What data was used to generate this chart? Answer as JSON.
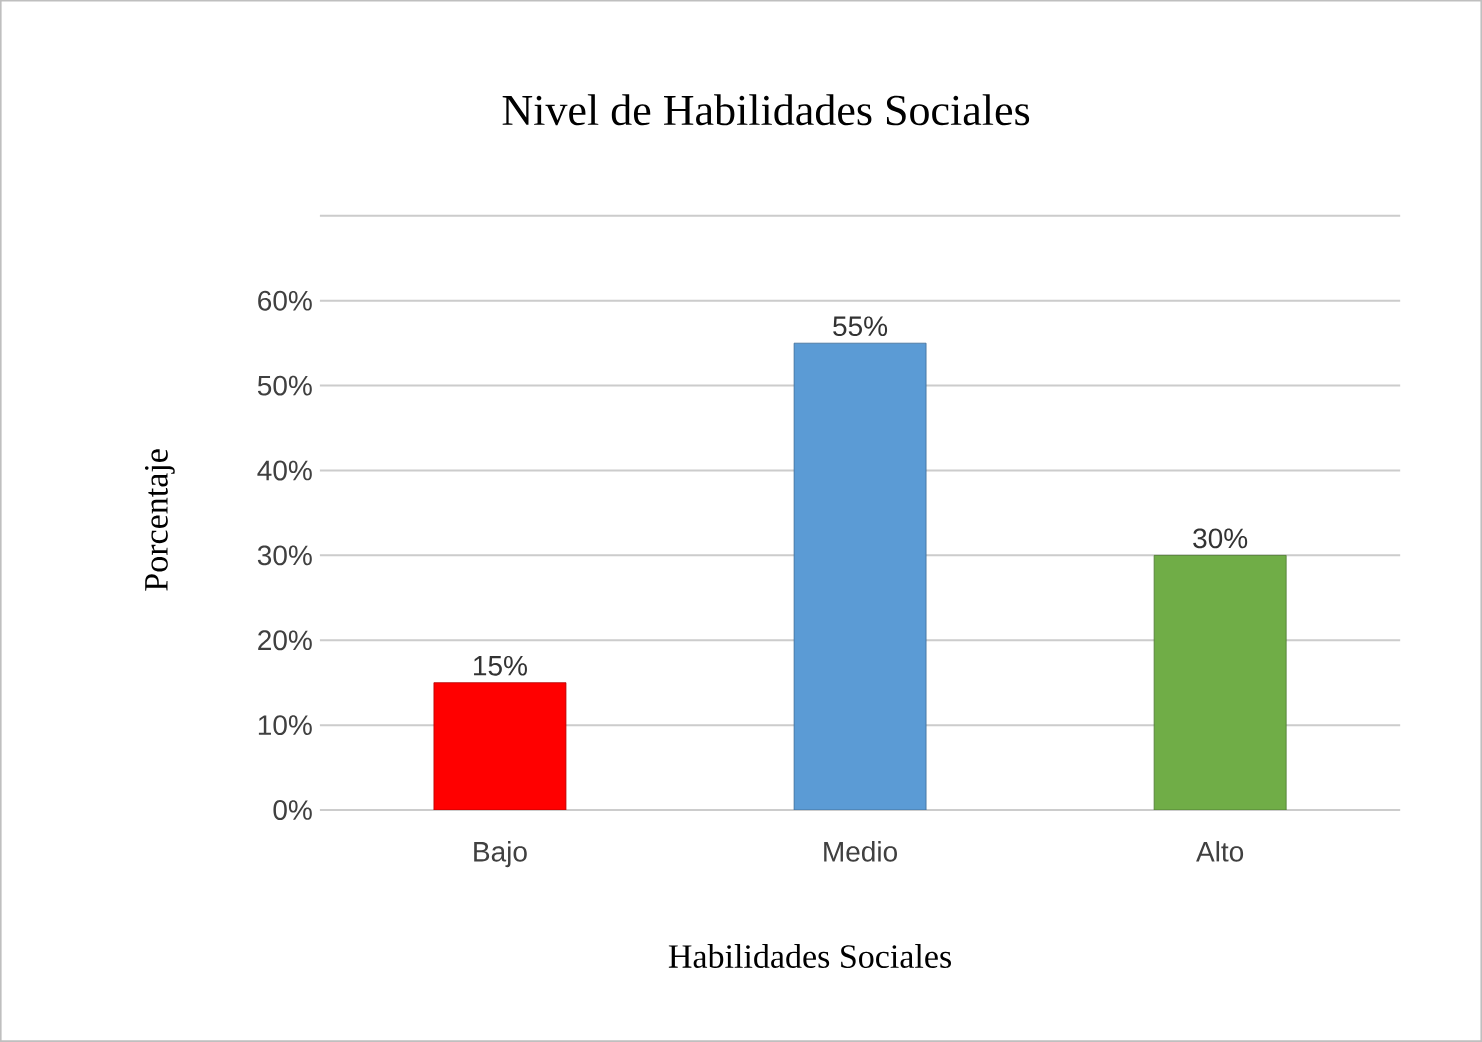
{
  "chart_data": {
    "type": "bar",
    "title": "Nivel de Habilidades Sociales",
    "xlabel": "Habilidades Sociales",
    "ylabel": "Porcentaje",
    "categories": [
      "Bajo",
      "Medio",
      "Alto"
    ],
    "values": [
      15,
      55,
      30
    ],
    "colors": [
      "#ff0000",
      "#5b9bd5",
      "#70ad47"
    ],
    "value_labels": [
      "15%",
      "55%",
      "30%"
    ],
    "ylim": [
      0,
      70
    ],
    "yticks": [
      {
        "value": 0,
        "label": "0%"
      },
      {
        "value": 10,
        "label": "10%"
      },
      {
        "value": 20,
        "label": "20%"
      },
      {
        "value": 30,
        "label": "30%"
      },
      {
        "value": 40,
        "label": "40%"
      },
      {
        "value": 50,
        "label": "50%"
      },
      {
        "value": 60,
        "label": "60%"
      },
      {
        "value": 70,
        "label": null
      }
    ],
    "grid": "y"
  }
}
